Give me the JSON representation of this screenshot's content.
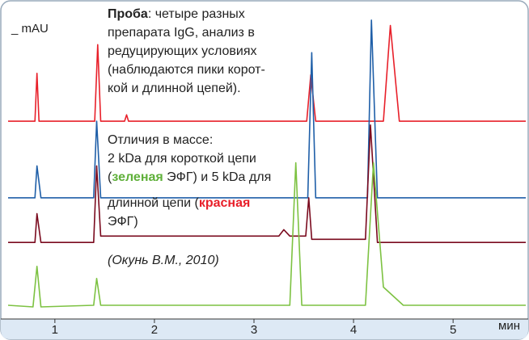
{
  "chart_data": {
    "type": "line",
    "y_label": "_ mAU",
    "x_label": "мин",
    "xlim": [
      0.53,
      5.73
    ],
    "xticks": [
      1,
      2,
      3,
      4,
      5
    ],
    "ylim": [
      0,
      100
    ],
    "series": [
      {
        "color": "#e8202a",
        "x": [
          0.53,
          0.8,
          0.82,
          0.84,
          1.4,
          1.43,
          1.46,
          1.7,
          1.72,
          1.74,
          3.53,
          3.57,
          3.62,
          4.3,
          4.37,
          4.46,
          5.73
        ],
        "values": [
          62,
          62,
          77,
          62,
          62,
          86,
          62,
          62,
          64,
          62,
          62,
          76.5,
          62,
          62,
          92,
          62,
          62
        ]
      },
      {
        "color": "#1f5fa8",
        "x": [
          0.53,
          0.8,
          0.82,
          0.86,
          1.39,
          1.42,
          1.46,
          3.54,
          3.58,
          3.62,
          4.14,
          4.18,
          4.24,
          5.73
        ],
        "values": [
          38,
          38,
          48,
          38,
          38,
          62,
          38,
          38,
          83.5,
          38,
          38,
          93.7,
          38,
          38
        ]
      },
      {
        "color": "#7a0a1e",
        "x": [
          0.53,
          0.8,
          0.82,
          0.86,
          1.39,
          1.42,
          1.46,
          3.25,
          3.3,
          3.36,
          3.52,
          3.55,
          3.58,
          4.12,
          4.17,
          4.24,
          4.5,
          5.73
        ],
        "values": [
          24,
          24,
          33,
          24,
          24,
          48,
          26,
          26,
          28,
          26,
          26,
          38,
          25,
          25,
          60.8,
          24,
          24,
          24
        ]
      },
      {
        "color": "#7dc242",
        "x": [
          0.53,
          0.78,
          0.82,
          0.86,
          1.39,
          1.42,
          1.46,
          3.36,
          3.42,
          3.48,
          4.12,
          4.2,
          4.3,
          4.5,
          5.73
        ],
        "values": [
          4.3,
          3.8,
          16.5,
          3.8,
          4.3,
          12.7,
          4.3,
          4.3,
          49,
          4.3,
          4.3,
          49,
          10,
          4.3,
          4.3
        ]
      }
    ],
    "annotations": {
      "sample": {
        "label": "Проба",
        "lines": [
          ": четыре разных",
          "препарата IgG, анализ в",
          "редуцирующих условиях",
          "(наблюдаются пики корот-",
          "кой и длинной цепей)."
        ]
      },
      "difference": {
        "lines": [
          "Отличия в массе:",
          "2 kDa для короткой цепи",
          "(",
          "зеленая",
          " ЭФГ) и 5 kDa для",
          "длинной цепи (",
          "красная",
          "ЭФГ)"
        ]
      },
      "source": "(Окунь В.М., 2010)"
    }
  }
}
